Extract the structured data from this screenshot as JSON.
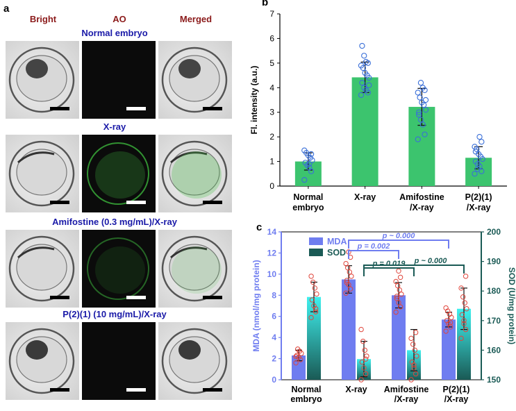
{
  "panel_a": {
    "letter": "a",
    "columns": [
      "Bright",
      "AO",
      "Merged"
    ],
    "rows": [
      {
        "label": "Normal embryo",
        "ao_level": "none"
      },
      {
        "label": "X-ray",
        "ao_level": "high"
      },
      {
        "label": "Amifostine (0.3 mg/mL)/X-ray",
        "ao_level": "medium"
      },
      {
        "label": "P(2)(1) (10 mg/mL)/X-ray",
        "ao_level": "none"
      }
    ],
    "colors": {
      "column_header": "#8b1a1a",
      "row_header": "#1a1aa8",
      "fluorescence": "#3fbf3f"
    }
  },
  "panel_b": {
    "letter": "b",
    "chart_data": {
      "type": "bar",
      "categories": [
        [
          "Normal",
          "embryo"
        ],
        [
          "X-ray"
        ],
        [
          "Amifostine",
          "/X-ray"
        ],
        [
          "P(2)(1)",
          "/X-ray"
        ]
      ],
      "values": [
        1.0,
        4.42,
        3.22,
        1.15
      ],
      "errors": [
        0.35,
        0.62,
        0.75,
        0.45
      ],
      "points": [
        [
          0.25,
          0.6,
          0.75,
          0.85,
          0.95,
          1.05,
          1.15,
          1.25,
          1.35,
          1.45,
          1.3,
          0.9
        ],
        [
          3.7,
          3.8,
          3.9,
          4.0,
          4.2,
          4.4,
          4.5,
          4.6,
          4.8,
          4.9,
          5.0,
          5.05,
          5.3,
          5.7,
          4.1
        ],
        [
          1.9,
          2.1,
          2.5,
          2.7,
          3.0,
          3.1,
          3.3,
          3.4,
          3.6,
          3.8,
          3.9,
          4.0,
          4.2,
          2.9,
          3.5
        ],
        [
          0.5,
          0.6,
          0.8,
          0.9,
          1.0,
          1.1,
          1.2,
          1.3,
          1.5,
          1.6,
          1.8,
          2.0,
          0.7,
          1.4
        ]
      ],
      "ylabel": "Fl. intensity (a.u.)",
      "ylim": [
        0,
        7
      ],
      "yticks": [
        "0",
        "1",
        "2",
        "3",
        "4",
        "5",
        "6",
        "7"
      ],
      "bar_color": "#3cc46e",
      "point_color": "#3a6fd8"
    }
  },
  "panel_c": {
    "letter": "c",
    "chart_data": {
      "type": "bar",
      "categories": [
        [
          "Normal",
          "embryo"
        ],
        [
          "X-ray"
        ],
        [
          "Amifostine",
          "/X-ray"
        ],
        [
          "P(2)(1)",
          "/X-ray"
        ]
      ],
      "series": [
        {
          "name": "MDA",
          "axis": "left",
          "values": [
            2.3,
            9.5,
            8.0,
            5.7
          ],
          "errors": [
            0.5,
            1.3,
            1.2,
            0.7
          ],
          "points": [
            [
              1.6,
              1.9,
              2.1,
              2.3,
              2.5,
              2.7,
              2.9,
              2.2
            ],
            [
              8.2,
              8.6,
              9.0,
              9.4,
              9.8,
              10.2,
              10.6,
              11.0,
              11.6,
              12.1,
              9.2
            ],
            [
              6.4,
              6.9,
              7.3,
              7.7,
              8.1,
              8.5,
              8.9,
              9.3,
              9.7,
              10.3,
              7.9
            ],
            [
              4.6,
              5.0,
              5.3,
              5.6,
              5.9,
              6.2,
              6.5,
              6.8,
              5.4
            ]
          ]
        },
        {
          "name": "SOD",
          "axis": "right",
          "values": [
            178,
            157,
            160,
            174
          ],
          "errors": [
            5,
            6,
            7,
            7
          ],
          "points": [
            [
              171,
              173,
              175,
              177,
              179,
              181,
              183,
              185,
              174
            ],
            [
              150,
              152,
              154,
              156,
              158,
              160,
              163,
              167,
              157
            ],
            [
              150,
              152,
              154,
              156,
              158,
              160,
              162,
              164,
              166,
              155
            ],
            [
              164,
              167,
              170,
              172,
              174,
              176,
              178,
              181,
              185,
              169
            ]
          ]
        }
      ],
      "ylabel_left": "MDA (nmol/mg protein)",
      "ylabel_right": "SOD (U/mg protein)",
      "ylim_left": [
        0,
        14
      ],
      "ylim_right": [
        150,
        200
      ],
      "yticks_left": [
        "0",
        "2",
        "4",
        "6",
        "8",
        "10",
        "12",
        "14"
      ],
      "yticks_right": [
        "150",
        "160",
        "170",
        "180",
        "190",
        "200"
      ],
      "legend": [
        "MDA",
        "SOD"
      ],
      "annotations": [
        {
          "text": "p ~ 0.000",
          "group": "MDA",
          "from": 1,
          "to": 3
        },
        {
          "text": "p = 0.002",
          "group": "MDA",
          "from": 1,
          "to": 2
        },
        {
          "text": "p = 0.019",
          "group": "SOD",
          "from": 1,
          "to": 2
        },
        {
          "text": "p ~ 0.000",
          "group": "SOD",
          "from": 1,
          "to": 3
        }
      ],
      "mda_color": "#6f7df0",
      "sod_color": "#1a5a55",
      "sod_top_color": "#3ff0ee",
      "point_color": "#e0463c"
    }
  }
}
